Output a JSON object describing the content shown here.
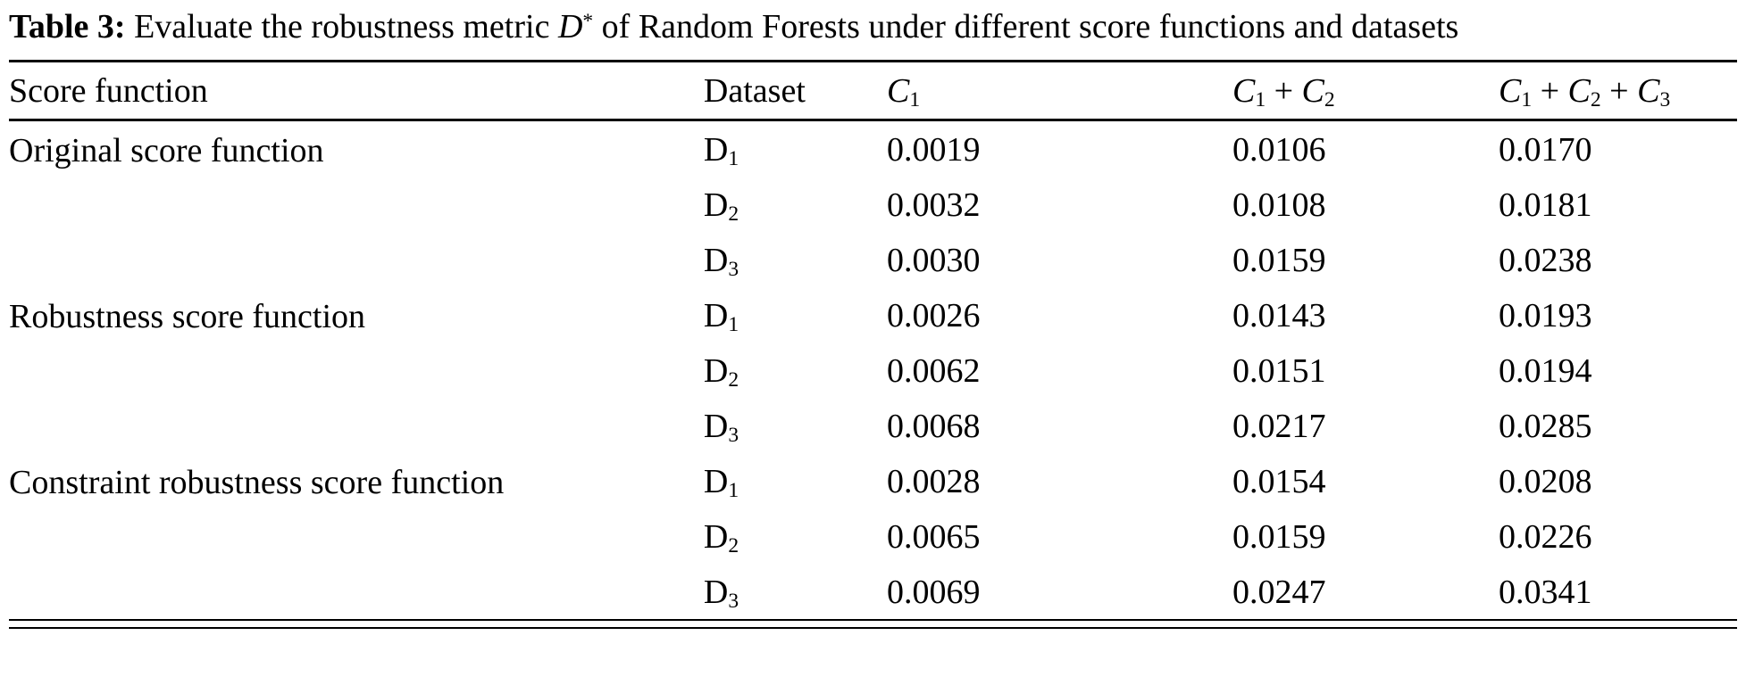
{
  "caption": {
    "label": "Table 3:",
    "pre": " Evaluate the robustness metric ",
    "math": "D^*",
    "post": " of Random Forests under different score functions and datasets"
  },
  "table": {
    "headers": [
      {
        "text": "Score function",
        "math": false
      },
      {
        "text": "Dataset",
        "math": false
      },
      {
        "text": "C_1",
        "math": true
      },
      {
        "text": "C_1 + C_2",
        "math": true
      },
      {
        "text": "C_1 + C_2 + C_3",
        "math": true
      }
    ],
    "col_widths_pct": [
      40.2,
      10.6,
      20.0,
      15.4,
      13.8
    ],
    "groups": [
      {
        "label": "Original score function",
        "rows": [
          {
            "dataset": "D_1",
            "values": [
              "0.0019",
              "0.0106",
              "0.0170"
            ]
          },
          {
            "dataset": "D_2",
            "values": [
              "0.0032",
              "0.0108",
              "0.0181"
            ]
          },
          {
            "dataset": "D_3",
            "values": [
              "0.0030",
              "0.0159",
              "0.0238"
            ]
          }
        ]
      },
      {
        "label": "Robustness score function",
        "rows": [
          {
            "dataset": "D_1",
            "values": [
              "0.0026",
              "0.0143",
              "0.0193"
            ]
          },
          {
            "dataset": "D_2",
            "values": [
              "0.0062",
              "0.0151",
              "0.0194"
            ]
          },
          {
            "dataset": "D_3",
            "values": [
              "0.0068",
              "0.0217",
              "0.0285"
            ]
          }
        ]
      },
      {
        "label": "Constraint robustness score function",
        "rows": [
          {
            "dataset": "D_1",
            "values": [
              "0.0028",
              "0.0154",
              "0.0208"
            ]
          },
          {
            "dataset": "D_2",
            "values": [
              "0.0065",
              "0.0159",
              "0.0226"
            ]
          },
          {
            "dataset": "D_3",
            "values": [
              "0.0069",
              "0.0247",
              "0.0341"
            ]
          }
        ]
      }
    ]
  },
  "colors": {
    "text": "#000000",
    "background": "#ffffff",
    "rule": "#000000"
  }
}
